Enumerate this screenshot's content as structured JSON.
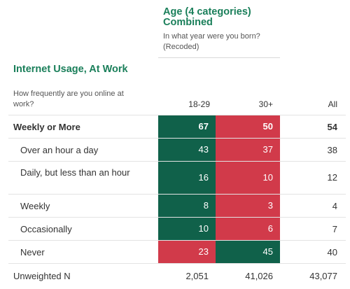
{
  "column_variable": {
    "title": "Age (4 categories) Combined",
    "question": "In what year were you born? (Recoded)"
  },
  "row_variable": {
    "title": "Internet Usage, At Work",
    "question": "How frequently are you online at work?"
  },
  "headers": {
    "col1": "18-29",
    "col2": "30+",
    "all": "All"
  },
  "rows": [
    {
      "label": "Weekly or More",
      "v1": "67",
      "v2": "50",
      "all": "54",
      "c1": "green",
      "c2": "red"
    },
    {
      "label": "Over an hour a day",
      "v1": "43",
      "v2": "37",
      "all": "38",
      "c1": "green",
      "c2": "red"
    },
    {
      "label": "Daily, but less than an hour",
      "v1": "16",
      "v2": "10",
      "all": "12",
      "c1": "green",
      "c2": "red"
    },
    {
      "label": "Weekly",
      "v1": "8",
      "v2": "3",
      "all": "4",
      "c1": "green",
      "c2": "red"
    },
    {
      "label": "Occasionally",
      "v1": "10",
      "v2": "6",
      "all": "7",
      "c1": "green",
      "c2": "red"
    },
    {
      "label": "Never",
      "v1": "23",
      "v2": "45",
      "all": "40",
      "c1": "red",
      "c2": "green"
    }
  ],
  "unweighted": {
    "label": "Unweighted N",
    "v1": "2,051",
    "v2": "41,026",
    "all": "43,077"
  },
  "colors": {
    "green": "#10614a",
    "red": "#d13a4a",
    "title": "#1a7f5a"
  }
}
